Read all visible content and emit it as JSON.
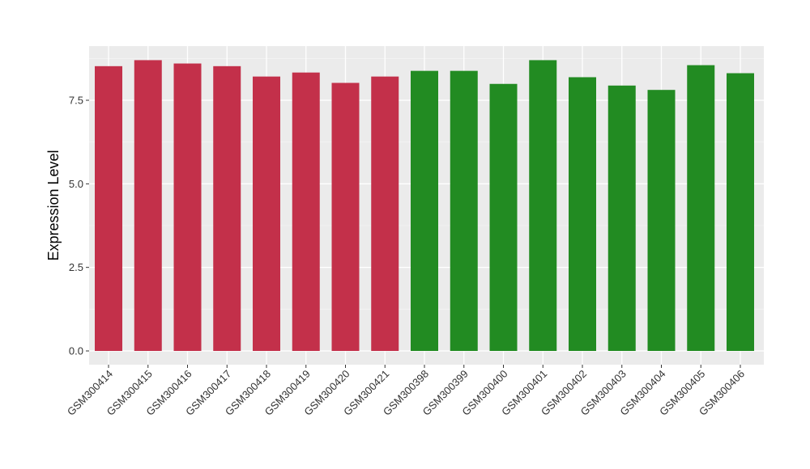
{
  "chart_data": {
    "type": "bar",
    "title": "",
    "xlabel": "",
    "ylabel": "Expression Level",
    "ylim": [
      0,
      9.05
    ],
    "y_ticks": [
      0,
      2.5,
      5,
      7.5
    ],
    "y_tick_labels": [
      "0.0",
      "2.5",
      "5.0",
      "7.5"
    ],
    "grid": true,
    "legend": "none",
    "categories": [
      "GSM300414",
      "GSM300415",
      "GSM300416",
      "GSM300417",
      "GSM300418",
      "GSM300419",
      "GSM300420",
      "GSM300421",
      "GSM300398",
      "GSM300399",
      "GSM300400",
      "GSM300401",
      "GSM300402",
      "GSM300403",
      "GSM300404",
      "GSM300405",
      "GSM300406"
    ],
    "values": [
      8.52,
      8.7,
      8.6,
      8.52,
      8.21,
      8.33,
      8.02,
      8.21,
      8.38,
      8.38,
      7.99,
      8.7,
      8.19,
      7.94,
      7.81,
      8.55,
      8.31
    ],
    "colors": [
      "#c3304a",
      "#c3304a",
      "#c3304a",
      "#c3304a",
      "#c3304a",
      "#c3304a",
      "#c3304a",
      "#c3304a",
      "#228b22",
      "#228b22",
      "#228b22",
      "#228b22",
      "#228b22",
      "#228b22",
      "#228b22",
      "#228b22",
      "#228b22"
    ]
  }
}
